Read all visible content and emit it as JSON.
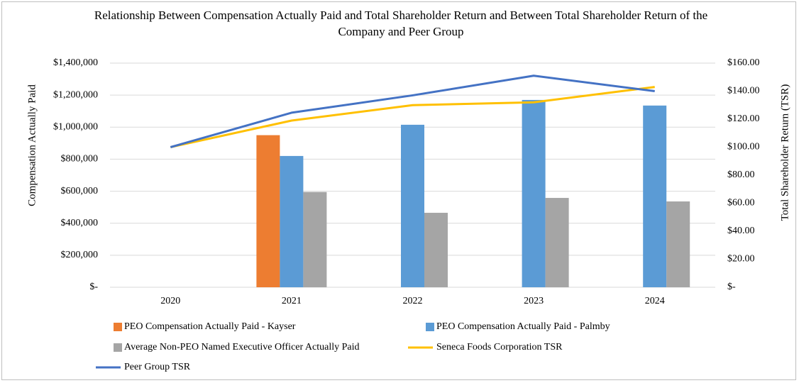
{
  "chart_data": {
    "type": "bar_line",
    "title": "Relationship Between Compensation Actually Paid and Total Shareholder Return and Between Total Shareholder Return of the Company and Peer Group",
    "ylabel": "Compensation Actually Paid",
    "y2label": "Total Shareholder Return (TSR)",
    "categories": [
      "2020",
      "2021",
      "2022",
      "2023",
      "2024"
    ],
    "series": [
      {
        "name": "PEO Compensation Actually Paid - Kayser",
        "type": "bar",
        "color": "#ed7d31",
        "values": [
          null,
          950000,
          null,
          null,
          null
        ]
      },
      {
        "name": "PEO Compensation Actually Paid - Palmby",
        "type": "bar",
        "color": "#5b9bd5",
        "values": [
          null,
          820000,
          1015000,
          1170000,
          1135000
        ]
      },
      {
        "name": "Average Non-PEO Named Executive Officer Actually Paid",
        "type": "bar",
        "color": "#a5a5a5",
        "values": [
          null,
          595000,
          465000,
          558000,
          536000
        ]
      },
      {
        "name": "Seneca Foods Corporation TSR",
        "type": "line",
        "axis": "y2",
        "color": "#ffc000",
        "values": [
          100,
          119,
          130,
          132,
          143
        ]
      },
      {
        "name": "Peer Group TSR",
        "type": "line",
        "axis": "y2",
        "color": "#4472c4",
        "values": [
          100,
          124.6,
          137,
          151,
          140
        ]
      }
    ],
    "ylim": [
      0,
      1400000
    ],
    "yticks": [
      {
        "value": 0,
        "label": "$-"
      },
      {
        "value": 200000,
        "label": "$200,000"
      },
      {
        "value": 400000,
        "label": "$400,000"
      },
      {
        "value": 600000,
        "label": "$600,000"
      },
      {
        "value": 800000,
        "label": "$800,000"
      },
      {
        "value": 1000000,
        "label": "$1,000,000"
      },
      {
        "value": 1200000,
        "label": "$1,200,000"
      },
      {
        "value": 1400000,
        "label": "$1,400,000"
      }
    ],
    "y2lim": [
      0,
      160
    ],
    "y2ticks": [
      {
        "value": 0,
        "label": "$-"
      },
      {
        "value": 20,
        "label": "$20.00"
      },
      {
        "value": 40,
        "label": "$40.00"
      },
      {
        "value": 60,
        "label": "$60.00"
      },
      {
        "value": 80,
        "label": "$80.00"
      },
      {
        "value": 100,
        "label": "$100.00"
      },
      {
        "value": 120,
        "label": "$120.00"
      },
      {
        "value": 140,
        "label": "$140.00"
      },
      {
        "value": 160,
        "label": "$160.00"
      }
    ],
    "grid": true
  }
}
